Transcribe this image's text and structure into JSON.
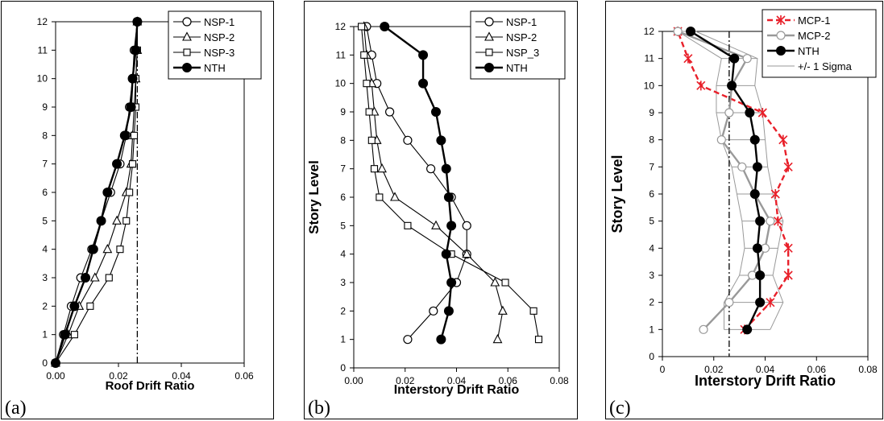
{
  "chart_data": [
    {
      "panel_label": "(a)",
      "type": "line",
      "title": "",
      "xlabel": "Roof Drift Ratio",
      "ylabel": "",
      "xlim": [
        0,
        0.06
      ],
      "ylim": [
        0,
        12
      ],
      "xticks": [
        "0.00",
        "0.02",
        "0.04",
        "0.06"
      ],
      "yticks": [
        "0",
        "1",
        "2",
        "3",
        "4",
        "5",
        "6",
        "7",
        "8",
        "9",
        "10",
        "11",
        "12"
      ],
      "legend_position": "top-right",
      "reference_line_x": 0.026,
      "series": [
        {
          "name": "NSP-1",
          "marker": "circle-open",
          "stroke": "#000000",
          "dash": "",
          "thick": false,
          "x": [
            0,
            0.0025,
            0.005,
            0.008,
            0.0115,
            0.0145,
            0.0175,
            0.0205,
            0.0225,
            0.0235,
            0.0245,
            0.025,
            0.026
          ],
          "y": [
            0,
            1,
            2,
            3,
            4,
            5,
            6,
            7,
            8,
            9,
            10,
            11,
            12
          ]
        },
        {
          "name": "NSP-2",
          "marker": "triangle-open",
          "stroke": "#000000",
          "dash": "",
          "thick": false,
          "x": [
            0,
            0.004,
            0.0075,
            0.0125,
            0.0165,
            0.0195,
            0.0225,
            0.024,
            0.0245,
            0.025,
            0.0255,
            0.026,
            0.026
          ],
          "y": [
            0,
            1,
            2,
            3,
            4,
            5,
            6,
            7,
            8,
            9,
            10,
            11,
            12
          ]
        },
        {
          "name": "NSP-3",
          "marker": "square-open",
          "stroke": "#000000",
          "dash": "",
          "thick": false,
          "x": [
            0,
            0.006,
            0.011,
            0.017,
            0.0205,
            0.0225,
            0.0235,
            0.0245,
            0.025,
            0.0255,
            0.0255,
            0.026,
            0.026
          ],
          "y": [
            0,
            1,
            2,
            3,
            4,
            5,
            6,
            7,
            8,
            9,
            10,
            11,
            12
          ]
        },
        {
          "name": "NTH",
          "marker": "circle-filled",
          "stroke": "#000000",
          "dash": "",
          "thick": true,
          "x": [
            0,
            0.003,
            0.006,
            0.0095,
            0.012,
            0.0145,
            0.0165,
            0.0195,
            0.022,
            0.024,
            0.0245,
            0.0255,
            0.026
          ],
          "y": [
            0,
            1,
            2,
            3,
            4,
            5,
            6,
            7,
            8,
            9,
            10,
            11,
            12
          ]
        }
      ]
    },
    {
      "panel_label": "(b)",
      "type": "line",
      "title": "",
      "xlabel": "Interstory Drift Ratio",
      "ylabel": "Story Level",
      "xlim": [
        0,
        0.08
      ],
      "ylim": [
        0,
        12
      ],
      "xticks": [
        "0.00",
        "0.02",
        "0.04",
        "0.06",
        "0.08"
      ],
      "yticks": [
        "0",
        "1",
        "2",
        "3",
        "4",
        "5",
        "6",
        "7",
        "8",
        "9",
        "10",
        "11",
        "12"
      ],
      "legend_position": "top-right",
      "series": [
        {
          "name": "NSP-1",
          "marker": "circle-open",
          "stroke": "#000000",
          "dash": "",
          "thick": false,
          "x": [
            0.021,
            0.031,
            0.04,
            0.044,
            0.044,
            0.038,
            0.03,
            0.021,
            0.014,
            0.009,
            0.007,
            0.005
          ],
          "y": [
            1,
            2,
            3,
            4,
            5,
            6,
            7,
            8,
            9,
            10,
            11,
            12
          ]
        },
        {
          "name": "NSP-2",
          "marker": "triangle-open",
          "stroke": "#000000",
          "dash": "",
          "thick": false,
          "x": [
            0.056,
            0.058,
            0.055,
            0.044,
            0.032,
            0.016,
            0.011,
            0.009,
            0.008,
            0.007,
            0.005,
            0.004
          ],
          "y": [
            1,
            2,
            3,
            4,
            5,
            6,
            7,
            8,
            9,
            10,
            11,
            12
          ]
        },
        {
          "name": "NSP_3",
          "marker": "square-open",
          "stroke": "#000000",
          "dash": "",
          "thick": false,
          "x": [
            0.072,
            0.07,
            0.059,
            0.038,
            0.021,
            0.01,
            0.008,
            0.007,
            0.006,
            0.005,
            0.004,
            0.003
          ],
          "y": [
            1,
            2,
            3,
            4,
            5,
            6,
            7,
            8,
            9,
            10,
            11,
            12
          ]
        },
        {
          "name": "NTH",
          "marker": "circle-filled",
          "stroke": "#000000",
          "dash": "",
          "thick": true,
          "x": [
            0.034,
            0.037,
            0.038,
            0.036,
            0.038,
            0.037,
            0.036,
            0.034,
            0.032,
            0.027,
            0.027,
            0.012
          ],
          "y": [
            1,
            2,
            3,
            4,
            5,
            6,
            7,
            8,
            9,
            10,
            11,
            12
          ]
        }
      ]
    },
    {
      "panel_label": "(c)",
      "type": "line",
      "title": "",
      "xlabel": "Interstory Drift Ratio",
      "ylabel": "Story Level",
      "xlim": [
        0,
        0.08
      ],
      "ylim": [
        0,
        12
      ],
      "xticks": [
        "0",
        "0.02",
        "0.04",
        "0.06",
        "0.08"
      ],
      "yticks": [
        "0",
        "1",
        "2",
        "3",
        "4",
        "5",
        "6",
        "7",
        "8",
        "9",
        "10",
        "11",
        "12"
      ],
      "legend_position": "top-right",
      "reference_line_x": 0.026,
      "series": [
        {
          "name": "MCP-1",
          "marker": "asterisk",
          "stroke": "#e8202a",
          "dash": "7,4",
          "thick": true,
          "x": [
            0.032,
            0.042,
            0.049,
            0.049,
            0.045,
            0.044,
            0.049,
            0.047,
            0.039,
            0.015,
            0.01,
            0.006
          ],
          "y": [
            1,
            2,
            3,
            4,
            5,
            6,
            7,
            8,
            9,
            10,
            11,
            12
          ]
        },
        {
          "name": "MCP-2",
          "marker": "circle-open",
          "stroke": "#999999",
          "dash": "",
          "thick": true,
          "x": [
            0.016,
            0.026,
            0.035,
            0.04,
            0.042,
            0.036,
            0.031,
            0.023,
            0.026,
            0.027,
            0.033,
            0.006
          ],
          "y": [
            1,
            2,
            3,
            4,
            5,
            6,
            7,
            8,
            9,
            10,
            11,
            12
          ]
        },
        {
          "name": "NTH",
          "marker": "circle-filled",
          "stroke": "#000000",
          "dash": "",
          "thick": true,
          "x": [
            0.033,
            0.038,
            0.038,
            0.037,
            0.038,
            0.036,
            0.037,
            0.036,
            0.034,
            0.027,
            0.028,
            0.011
          ],
          "y": [
            1,
            2,
            3,
            4,
            5,
            6,
            7,
            8,
            9,
            10,
            11,
            12
          ]
        },
        {
          "name": "+/- 1 Sigma",
          "marker": "none",
          "stroke": "#999999",
          "dash": "",
          "thick": false,
          "legend_only": true,
          "x": [],
          "y": []
        }
      ],
      "sigma_band": {
        "stroke": "#999999",
        "y": [
          1,
          2,
          3,
          4,
          5,
          6,
          7,
          8,
          9,
          10,
          11,
          12
        ],
        "lower": [
          0.024,
          0.024,
          0.03,
          0.032,
          0.031,
          0.029,
          0.027,
          0.023,
          0.021,
          0.021,
          0.023,
          0.006
        ],
        "upper": [
          0.042,
          0.047,
          0.043,
          0.045,
          0.047,
          0.043,
          0.041,
          0.04,
          0.039,
          0.036,
          0.037,
          0.013
        ]
      }
    }
  ]
}
